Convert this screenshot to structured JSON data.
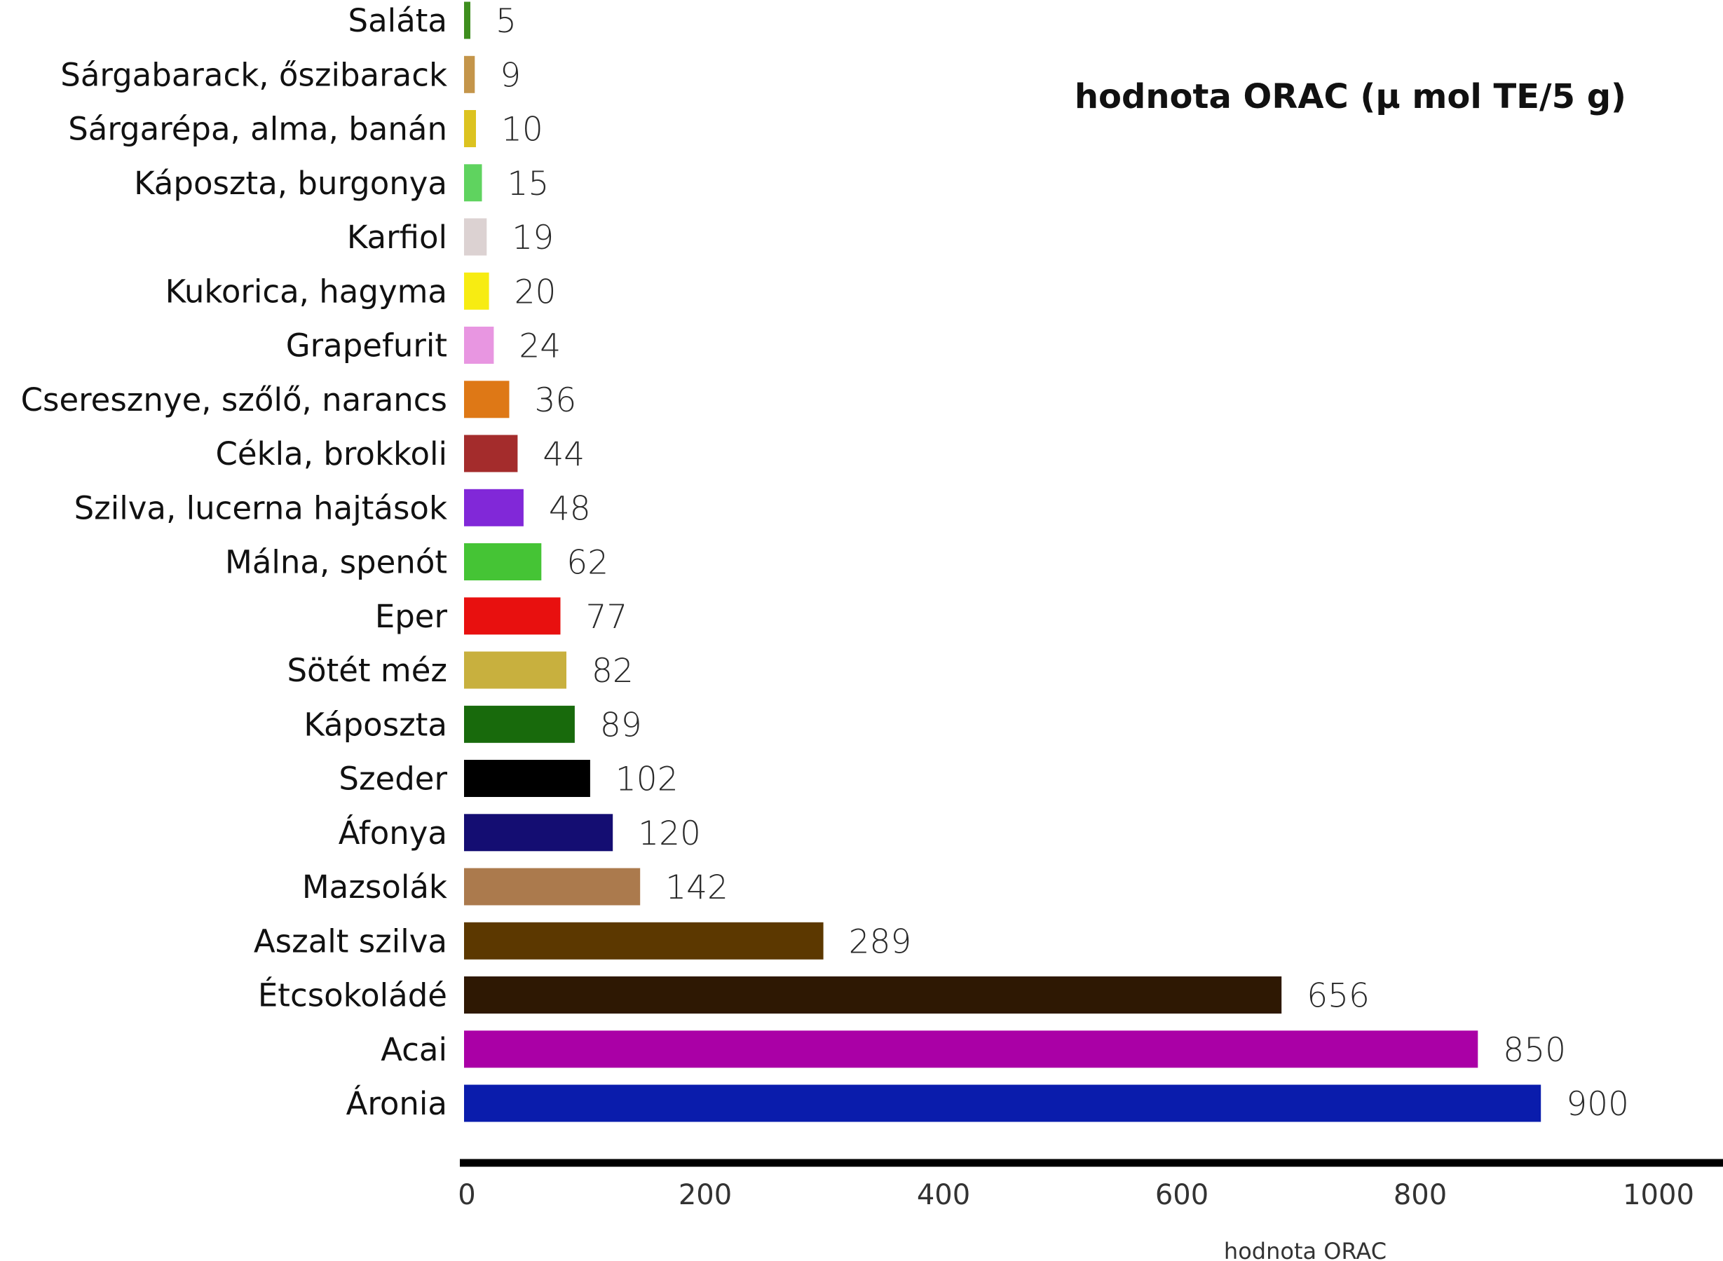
{
  "chart_data": {
    "type": "bar",
    "orientation": "horizontal",
    "title": "hodnota ORAC (μ mol TE/5 g)",
    "xlabel": "hodnota ORAC",
    "ylabel": "",
    "xlim": [
      0,
      1000
    ],
    "xticks": [
      0,
      200,
      400,
      600,
      800,
      1000
    ],
    "grid": false,
    "legend": "none",
    "categories": [
      "Saláta",
      "Sárgabarack, őszibarack",
      "Sárgarépa, alma, banán",
      "Káposzta, burgonya",
      "Karfiol",
      "Kukorica, hagyma",
      "Grapefurit",
      "Cseresznye, szőlő, narancs",
      "Cékla, brokkoli",
      "Szilva, lucerna hajtások",
      "Málna, spenót",
      "Eper",
      "Sötét méz",
      "Káposzta",
      "Szeder",
      "Áfonya",
      "Mazsolák",
      "Aszalt szilva",
      "Étcsokoládé",
      "Acai",
      "Áronia"
    ],
    "values": [
      5,
      9,
      10,
      15,
      19,
      20,
      24,
      36,
      44,
      48,
      62,
      77,
      82,
      89,
      102,
      120,
      142,
      289,
      656,
      850,
      900
    ],
    "bar_lengths": [
      4,
      9,
      10,
      15,
      19,
      21,
      25,
      38,
      45,
      50,
      65,
      81,
      86,
      93,
      106,
      125,
      148,
      302,
      687,
      852,
      905
    ],
    "colors": [
      "#3e8e1e",
      "#c4954a",
      "#dcc320",
      "#5fd35f",
      "#dcd2d2",
      "#f7ec12",
      "#e896e1",
      "#de7816",
      "#a42c2c",
      "#8128d8",
      "#45c435",
      "#e8100f",
      "#c8b03e",
      "#186a0c",
      "#000000",
      "#140d72",
      "#ab7a4d",
      "#5c3800",
      "#2e1803",
      "#aa00a6",
      "#0a1cac"
    ]
  }
}
